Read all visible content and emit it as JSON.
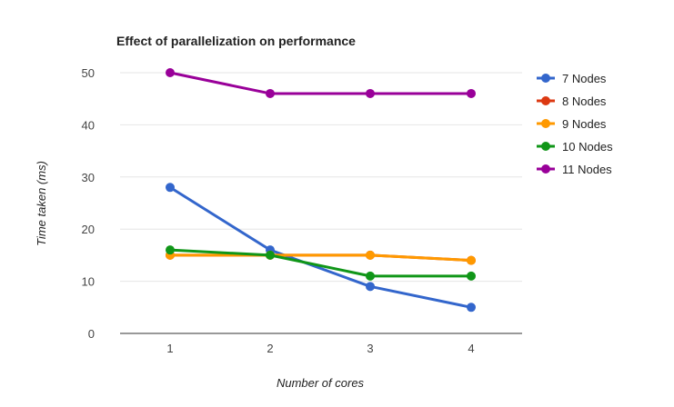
{
  "chart_data": {
    "type": "line",
    "title": "Effect of parallelization on performance",
    "xlabel": "Number of cores",
    "ylabel": "Time taken (ms)",
    "x": [
      1,
      2,
      3,
      4
    ],
    "x_tick_labels": [
      "1",
      "2",
      "3",
      "4"
    ],
    "ylim": [
      0,
      50
    ],
    "y_ticks": [
      0,
      10,
      20,
      30,
      40,
      50
    ],
    "grid": true,
    "legend_position": "right",
    "series": [
      {
        "name": "7 Nodes",
        "color": "#3366cc",
        "values": [
          28,
          16,
          9,
          5
        ]
      },
      {
        "name": "8 Nodes",
        "color": "#dc3912",
        "values": [
          15,
          15,
          15,
          14
        ]
      },
      {
        "name": "9 Nodes",
        "color": "#ff9900",
        "values": [
          15,
          15,
          15,
          14
        ]
      },
      {
        "name": "10 Nodes",
        "color": "#109618",
        "values": [
          16,
          15,
          11,
          11
        ]
      },
      {
        "name": "11 Nodes",
        "color": "#990099",
        "values": [
          50,
          46,
          46,
          46
        ]
      }
    ]
  }
}
